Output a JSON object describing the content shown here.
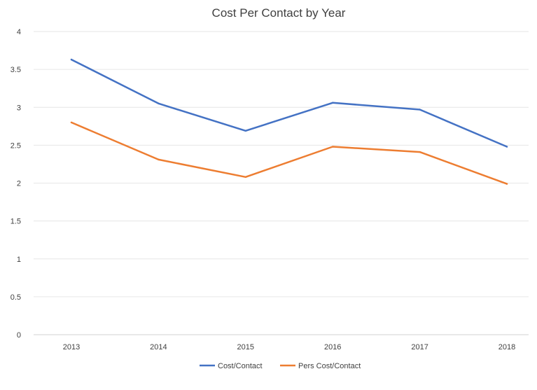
{
  "chart_data": {
    "type": "line",
    "title": "Cost Per Contact by Year",
    "xlabel": "",
    "ylabel": "",
    "categories": [
      "2013",
      "2014",
      "2015",
      "2016",
      "2017",
      "2018"
    ],
    "ylim": [
      0,
      4
    ],
    "yticks": [
      "0",
      "0.5",
      "1",
      "1.5",
      "2",
      "2.5",
      "3",
      "3.5",
      "4"
    ],
    "grid": true,
    "legend_position": "bottom",
    "series": [
      {
        "name": "Cost/Contact",
        "color": "#4472c4",
        "values": [
          3.63,
          3.05,
          2.69,
          3.06,
          2.97,
          2.48
        ]
      },
      {
        "name": "Pers Cost/Contact",
        "color": "#ed7d31",
        "values": [
          2.8,
          2.31,
          2.08,
          2.48,
          2.41,
          1.99
        ]
      }
    ]
  }
}
